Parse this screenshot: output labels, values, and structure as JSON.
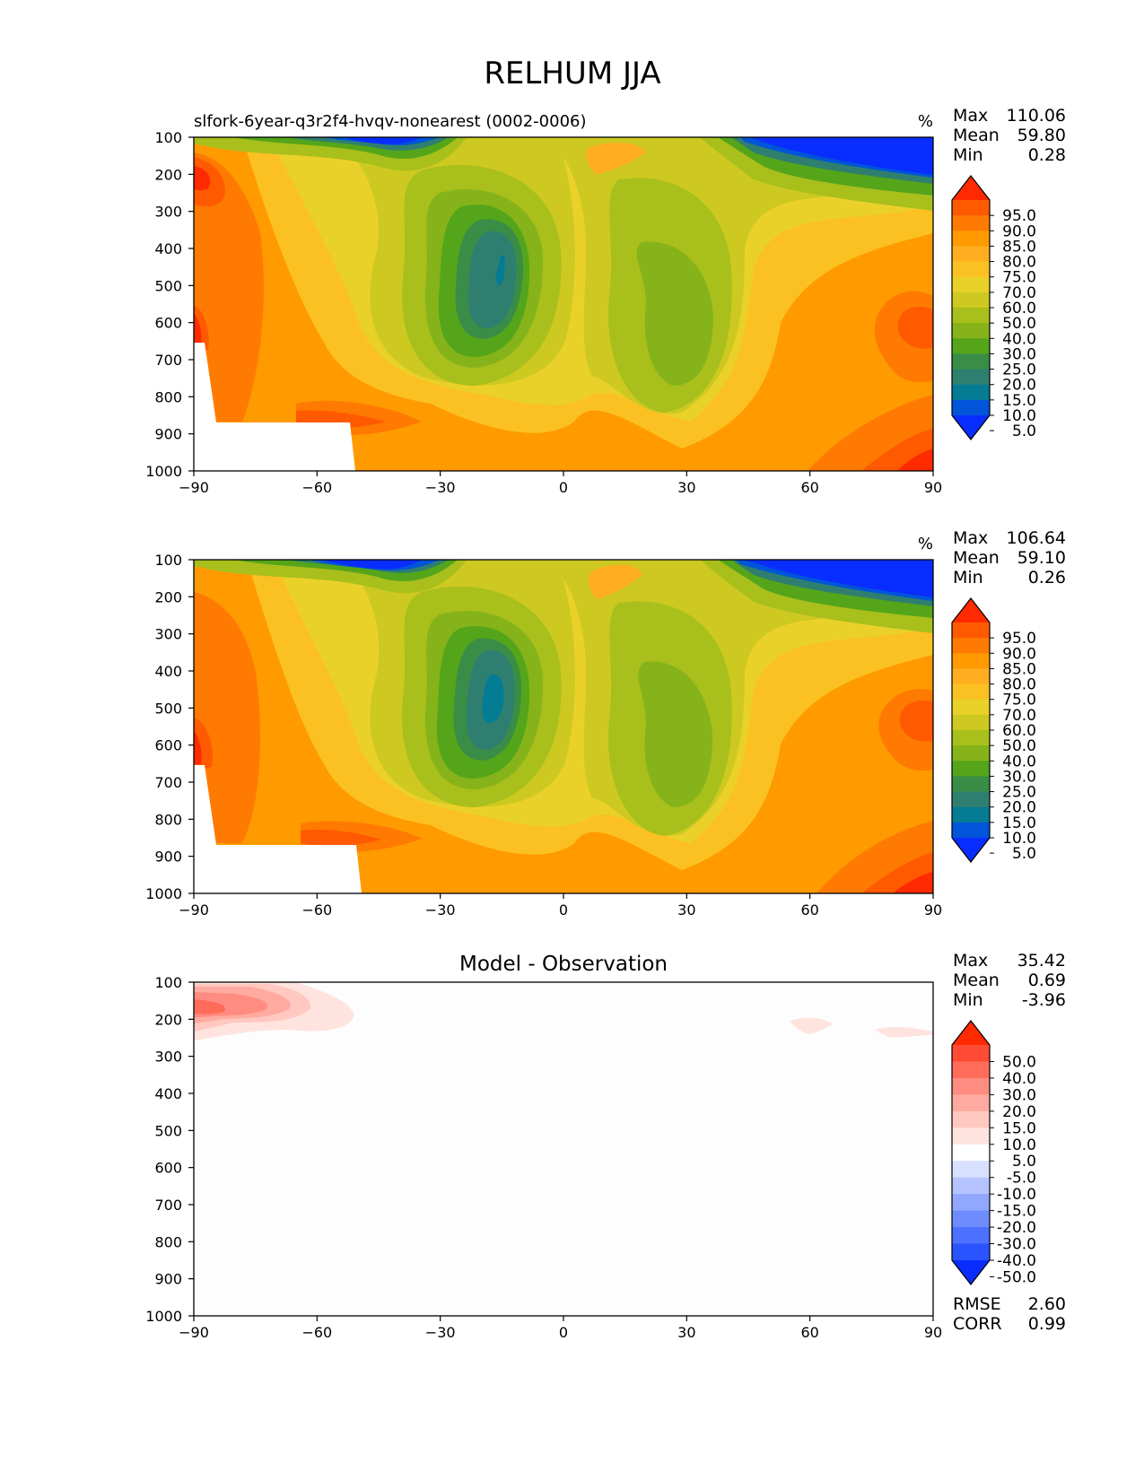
{
  "figure_title": "RELHUM JJA",
  "chart_data": [
    {
      "type": "contour",
      "title": "slfork-6year-q3r2f4-hvqv-nonearest (0002-0006)",
      "units": "%",
      "stats": [
        {
          "label": "Max",
          "value": "110.06"
        },
        {
          "label": "Mean",
          "value": "59.80"
        },
        {
          "label": "Min",
          "value": "0.28"
        }
      ],
      "x_ticks": [
        "−90",
        "−60",
        "−30",
        "0",
        "30",
        "60",
        "90"
      ],
      "y_ticks": [
        "100",
        "200",
        "300",
        "400",
        "500",
        "600",
        "700",
        "800",
        "900",
        "1000"
      ],
      "xlim": [
        -90,
        90
      ],
      "ylim": [
        1000,
        100
      ],
      "colorbar": {
        "labels": [
          "95.0",
          "90.0",
          "85.0",
          "80.0",
          "75.0",
          "70.0",
          "60.0",
          "50.0",
          "40.0",
          "30.0",
          "25.0",
          "20.0",
          "15.0",
          "10.0",
          "5.0"
        ],
        "colors": [
          "#ff2a00",
          "#ff5a00",
          "#ff7a00",
          "#ff9a00",
          "#ffae1f",
          "#fbc122",
          "#ead12a",
          "#cdc921",
          "#a8bf1c",
          "#85b319",
          "#54a51a",
          "#3a8d46",
          "#2f7f70",
          "#047c94",
          "#0055d8",
          "#0a2dff"
        ]
      }
    },
    {
      "type": "contour",
      "title": "",
      "units": "%",
      "stats": [
        {
          "label": "Max",
          "value": "106.64"
        },
        {
          "label": "Mean",
          "value": "59.10"
        },
        {
          "label": "Min",
          "value": "0.26"
        }
      ],
      "x_ticks": [
        "−90",
        "−60",
        "−30",
        "0",
        "30",
        "60",
        "90"
      ],
      "y_ticks": [
        "100",
        "200",
        "300",
        "400",
        "500",
        "600",
        "700",
        "800",
        "900",
        "1000"
      ],
      "xlim": [
        -90,
        90
      ],
      "ylim": [
        1000,
        100
      ],
      "colorbar": {
        "labels": [
          "95.0",
          "90.0",
          "85.0",
          "80.0",
          "75.0",
          "70.0",
          "60.0",
          "50.0",
          "40.0",
          "30.0",
          "25.0",
          "20.0",
          "15.0",
          "10.0",
          "5.0"
        ],
        "colors": [
          "#ff2a00",
          "#ff5a00",
          "#ff7a00",
          "#ff9a00",
          "#ffae1f",
          "#fbc122",
          "#ead12a",
          "#cdc921",
          "#a8bf1c",
          "#85b319",
          "#54a51a",
          "#3a8d46",
          "#2f7f70",
          "#047c94",
          "#0055d8",
          "#0a2dff"
        ]
      }
    },
    {
      "type": "contour",
      "title": "Model - Observation",
      "units": "",
      "stats": [
        {
          "label": "Max",
          "value": "35.42"
        },
        {
          "label": "Mean",
          "value": "0.69"
        },
        {
          "label": "Min",
          "value": "-3.96"
        }
      ],
      "extra_stats": [
        {
          "label": "RMSE",
          "value": "2.60"
        },
        {
          "label": "CORR",
          "value": "0.99"
        }
      ],
      "x_ticks": [
        "−90",
        "−60",
        "−30",
        "0",
        "30",
        "60",
        "90"
      ],
      "y_ticks": [
        "100",
        "200",
        "300",
        "400",
        "500",
        "600",
        "700",
        "800",
        "900",
        "1000"
      ],
      "xlim": [
        -90,
        90
      ],
      "ylim": [
        1000,
        100
      ],
      "colorbar": {
        "labels": [
          "50.0",
          "40.0",
          "30.0",
          "20.0",
          "15.0",
          "10.0",
          "5.0",
          "-5.0",
          "-10.0",
          "-15.0",
          "-20.0",
          "-30.0",
          "-40.0",
          "-50.0"
        ],
        "colors": [
          "#ff2a00",
          "#ff4b33",
          "#ff6c5a",
          "#ff8c80",
          "#ffaaa0",
          "#ffc8c0",
          "#ffe3de",
          "#ffffff",
          "#d8e0ff",
          "#b5c4ff",
          "#92a8ff",
          "#6f8cff",
          "#4c70ff",
          "#2954ff",
          "#0a2dff"
        ]
      }
    }
  ]
}
